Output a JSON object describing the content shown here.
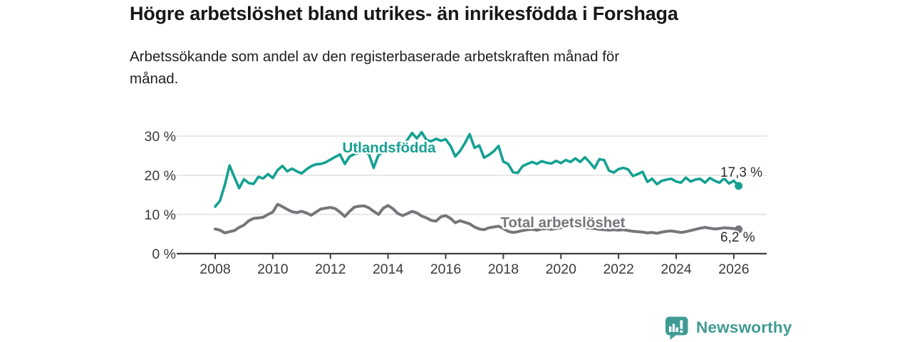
{
  "header": {
    "title": "Högre arbetslöshet bland utrikes- än inrikesfödda i Forshaga",
    "subtitle_lines": [
      "Arbetssökande som andel av den registerbaserade arbetskraften månad för",
      "månad."
    ]
  },
  "chart_data": {
    "type": "line",
    "title": "Högre arbetslöshet bland utrikes- än inrikesfödda i Forshaga",
    "subtitle": "Arbetssökande som andel av den registerbaserade arbetskraften månad för månad.",
    "grid": "horizontal",
    "legend_position": "inline-labels",
    "x_start_year": 2008,
    "x_step_months": 2,
    "x_end_year": 2026.17,
    "ylim": [
      0,
      33
    ],
    "x_ticks": [
      {
        "label": "2008",
        "year": 2008
      },
      {
        "label": "2010",
        "year": 2010
      },
      {
        "label": "2012",
        "year": 2012
      },
      {
        "label": "2014",
        "year": 2014
      },
      {
        "label": "2016",
        "year": 2016
      },
      {
        "label": "2018",
        "year": 2018
      },
      {
        "label": "2020",
        "year": 2020
      },
      {
        "label": "2022",
        "year": 2022
      },
      {
        "label": "2024",
        "year": 2024
      },
      {
        "label": "2026",
        "year": 2026
      }
    ],
    "y_ticks": [
      {
        "label": "0 %",
        "value": 0
      },
      {
        "label": "10 %",
        "value": 10
      },
      {
        "label": "20 %",
        "value": 20
      },
      {
        "label": "30 %",
        "value": 30
      }
    ],
    "series": [
      {
        "name": "Utlandsfödda",
        "color": "#14a191",
        "end_label": "17,3 %",
        "end_value": 17.3,
        "values": [
          12.0,
          13.5,
          17.5,
          22.5,
          19.5,
          16.7,
          19.0,
          18.0,
          17.8,
          19.6,
          19.2,
          20.3,
          19.3,
          21.3,
          22.4,
          21.0,
          21.7,
          21.0,
          20.5,
          21.5,
          22.3,
          22.8,
          22.9,
          23.3,
          24.0,
          24.7,
          25.3,
          22.9,
          24.8,
          25.4,
          25.7,
          26.0,
          25.4,
          21.9,
          25.2,
          25.8,
          26.2,
          26.8,
          26.3,
          27.4,
          29.0,
          30.8,
          29.4,
          31.0,
          29.0,
          28.7,
          29.3,
          28.8,
          29.2,
          27.5,
          24.8,
          26.2,
          28.2,
          30.5,
          27.0,
          27.6,
          24.5,
          25.2,
          26.1,
          27.5,
          23.5,
          22.9,
          20.8,
          20.6,
          22.3,
          22.9,
          23.4,
          22.9,
          23.6,
          23.2,
          23.0,
          23.7,
          23.1,
          23.9,
          23.4,
          24.3,
          23.4,
          24.6,
          23.3,
          21.8,
          24.1,
          23.9,
          21.2,
          20.7,
          21.6,
          21.9,
          21.5,
          19.8,
          20.3,
          20.9,
          18.3,
          19.1,
          17.7,
          18.6,
          18.9,
          19.1,
          18.4,
          18.1,
          19.4,
          18.4,
          18.9,
          19.1,
          18.1,
          19.3,
          18.6,
          18.1,
          19.2,
          17.9,
          18.6,
          17.3
        ]
      },
      {
        "name": "Total arbetslöshet",
        "color": "#77757b",
        "end_label": "6,2 %",
        "end_value": 6.2,
        "values": [
          6.3,
          6.0,
          5.3,
          5.6,
          5.9,
          6.7,
          7.3,
          8.4,
          9.0,
          9.1,
          9.3,
          10.0,
          10.6,
          12.6,
          12.0,
          11.3,
          10.7,
          10.5,
          10.8,
          10.4,
          9.8,
          10.6,
          11.4,
          11.6,
          11.8,
          11.5,
          10.6,
          9.5,
          10.8,
          11.9,
          12.1,
          12.2,
          11.7,
          10.8,
          10.0,
          11.6,
          12.3,
          11.5,
          10.3,
          9.7,
          10.2,
          10.8,
          10.4,
          9.6,
          9.1,
          8.5,
          8.3,
          9.4,
          9.7,
          9.0,
          7.9,
          8.4,
          8.0,
          7.6,
          6.8,
          6.3,
          6.1,
          6.6,
          6.8,
          7.0,
          6.4,
          5.7,
          5.4,
          5.6,
          5.9,
          6.1,
          6.2,
          6.0,
          6.3,
          6.4,
          6.2,
          6.4,
          6.6,
          7.0,
          7.2,
          7.0,
          6.8,
          6.6,
          6.5,
          6.4,
          6.2,
          6.1,
          6.0,
          6.1,
          6.0,
          6.1,
          5.9,
          5.7,
          5.6,
          5.5,
          5.3,
          5.4,
          5.2,
          5.5,
          5.7,
          5.8,
          5.6,
          5.4,
          5.6,
          5.9,
          6.2,
          6.5,
          6.7,
          6.5,
          6.3,
          6.4,
          6.6,
          6.5,
          6.4,
          6.2
        ]
      }
    ]
  },
  "footer": {
    "brand": "Newsworthy",
    "brand_color": "#3f9b93",
    "logo_icon": "bar-chart-speech-bubble"
  },
  "colors": {
    "background": "#ffffff",
    "gridline": "#dbdbdb",
    "axis": "#3f3f3f",
    "tick_text": "#3a3a3a",
    "value_text": "#2b2b2b"
  }
}
